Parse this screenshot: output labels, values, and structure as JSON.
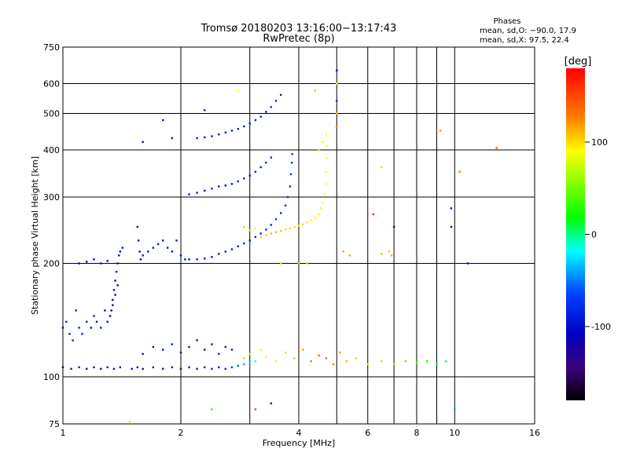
{
  "chart_data": {
    "type": "scatter",
    "title": "Tromsø 20180203 13:16:00−13:17:43",
    "subtitle": "RwPretec (8p)",
    "xlabel": "Frequency [MHz]",
    "ylabel": "Stationary phase Virtual Height [km]",
    "x_scale": "log",
    "y_scale": "log",
    "xlim": [
      1,
      16
    ],
    "ylim": [
      75,
      750
    ],
    "x_ticks": [
      1,
      2,
      4,
      6,
      8,
      10,
      16
    ],
    "x_tick_labels": [
      "1",
      "2",
      "4",
      "6",
      "8",
      "10",
      "16"
    ],
    "x_grid": [
      1,
      2,
      3,
      4,
      5,
      6,
      7,
      8,
      9,
      10,
      16
    ],
    "y_ticks": [
      75,
      100,
      200,
      300,
      400,
      500,
      600,
      750
    ],
    "y_tick_labels": [
      "75",
      "100",
      "200",
      "300",
      "400",
      "500",
      "600",
      "750"
    ],
    "grid": true,
    "legend": {
      "title": "Phases",
      "lines": [
        "mean, sd,O: −90.0, 17.9",
        "mean, sd,X:  97.5, 22.4"
      ],
      "placement": "top-right"
    },
    "colorbar": {
      "label": "[deg]",
      "range": [
        -180,
        180
      ],
      "ticks": [
        100,
        0,
        -100
      ],
      "tick_labels": [
        "100",
        "0",
        "-100"
      ],
      "colors": [
        "#ff0000",
        "#ff7f00",
        "#ffff00",
        "#00ff00",
        "#00ffff",
        "#0040ff",
        "#0000c0",
        "#3a007a",
        "#000000"
      ]
    },
    "series": [
      {
        "points": [
          [
            1.0,
            106,
            -95
          ],
          [
            1.05,
            105,
            -98
          ],
          [
            1.1,
            106,
            -92
          ],
          [
            1.15,
            105,
            -96
          ],
          [
            1.2,
            106,
            -94
          ],
          [
            1.25,
            105,
            -99
          ],
          [
            1.3,
            106,
            -93
          ],
          [
            1.35,
            105,
            -97
          ],
          [
            1.4,
            106,
            -95
          ],
          [
            1.5,
            105,
            -92
          ],
          [
            1.55,
            106,
            -96
          ],
          [
            1.6,
            105,
            -94
          ],
          [
            1.7,
            106,
            -91
          ],
          [
            1.8,
            105,
            -95
          ],
          [
            1.9,
            106,
            -93
          ],
          [
            2.0,
            105,
            -97
          ],
          [
            2.1,
            106,
            -92
          ],
          [
            2.2,
            105,
            -90
          ],
          [
            2.3,
            106,
            -88
          ],
          [
            2.4,
            105,
            -86
          ],
          [
            2.5,
            106,
            -84
          ],
          [
            2.6,
            105,
            -80
          ],
          [
            2.7,
            106,
            -75
          ],
          [
            2.8,
            107,
            -60
          ],
          [
            2.9,
            108,
            -40
          ],
          [
            3.0,
            109,
            -30
          ],
          [
            3.1,
            110,
            -20
          ],
          [
            1.0,
            135,
            -85
          ],
          [
            1.02,
            140,
            -88
          ],
          [
            1.04,
            130,
            -90
          ],
          [
            1.06,
            125,
            -87
          ],
          [
            1.08,
            150,
            -92
          ],
          [
            1.1,
            135,
            -90
          ],
          [
            1.12,
            130,
            -89
          ],
          [
            1.15,
            140,
            -93
          ],
          [
            1.18,
            135,
            -94
          ],
          [
            1.2,
            145,
            -92
          ],
          [
            1.22,
            140,
            -95
          ],
          [
            1.25,
            135,
            -96
          ],
          [
            1.28,
            150,
            -100
          ],
          [
            1.3,
            140,
            -98
          ],
          [
            1.32,
            145,
            -102
          ],
          [
            1.33,
            150,
            -110
          ],
          [
            1.34,
            160,
            -112
          ],
          [
            1.35,
            170,
            -110
          ],
          [
            1.36,
            180,
            -108
          ],
          [
            1.37,
            190,
            -105
          ],
          [
            1.38,
            200,
            -103
          ],
          [
            1.39,
            210,
            -100
          ],
          [
            1.4,
            215,
            -100
          ],
          [
            1.42,
            220,
            -98
          ],
          [
            1.38,
            175,
            -106
          ],
          [
            1.36,
            165,
            -111
          ],
          [
            1.34,
            155,
            -113
          ],
          [
            1.1,
            200,
            -100
          ],
          [
            1.15,
            202,
            -98
          ],
          [
            1.2,
            205,
            -99
          ],
          [
            1.25,
            200,
            -97
          ],
          [
            1.3,
            203,
            -98
          ],
          [
            1.55,
            250,
            -96
          ],
          [
            1.56,
            230,
            -94
          ],
          [
            1.57,
            215,
            -95
          ],
          [
            1.58,
            205,
            -97
          ],
          [
            1.6,
            210,
            -95
          ],
          [
            1.65,
            215,
            -93
          ],
          [
            1.7,
            220,
            -94
          ],
          [
            1.75,
            225,
            -95
          ],
          [
            1.8,
            230,
            -96
          ],
          [
            1.85,
            220,
            -94
          ],
          [
            1.9,
            215,
            -93
          ],
          [
            1.95,
            230,
            -92
          ],
          [
            2.0,
            210,
            -95
          ],
          [
            2.05,
            205,
            -96
          ],
          [
            2.1,
            205,
            -95
          ],
          [
            2.2,
            205,
            -94
          ],
          [
            2.3,
            206,
            -93
          ],
          [
            2.4,
            208,
            -92
          ],
          [
            2.5,
            212,
            -91
          ],
          [
            2.6,
            215,
            -90
          ],
          [
            2.7,
            218,
            -89
          ],
          [
            2.8,
            222,
            -88
          ],
          [
            2.9,
            226,
            -88
          ],
          [
            3.0,
            230,
            -87
          ],
          [
            3.1,
            235,
            -86
          ],
          [
            3.2,
            240,
            -85
          ],
          [
            3.3,
            246,
            -84
          ],
          [
            3.4,
            253,
            -83
          ],
          [
            3.5,
            262,
            -82
          ],
          [
            3.6,
            272,
            -80
          ],
          [
            3.7,
            285,
            -78
          ],
          [
            3.75,
            300,
            -76
          ],
          [
            3.8,
            320,
            -75
          ],
          [
            3.82,
            345,
            -74
          ],
          [
            3.84,
            370,
            -73
          ],
          [
            3.85,
            390,
            -72
          ],
          [
            2.1,
            305,
            -95
          ],
          [
            2.2,
            308,
            -94
          ],
          [
            2.3,
            312,
            -93
          ],
          [
            2.4,
            316,
            -92
          ],
          [
            2.5,
            320,
            -91
          ],
          [
            2.6,
            322,
            -90
          ],
          [
            2.7,
            325,
            -90
          ],
          [
            2.8,
            330,
            -89
          ],
          [
            2.9,
            336,
            -88
          ],
          [
            3.0,
            342,
            -87
          ],
          [
            3.1,
            350,
            -86
          ],
          [
            3.2,
            360,
            -86
          ],
          [
            3.3,
            370,
            -85
          ],
          [
            3.4,
            382,
            -84
          ],
          [
            2.2,
            430,
            -94
          ],
          [
            2.3,
            432,
            -93
          ],
          [
            2.4,
            435,
            -92
          ],
          [
            2.5,
            440,
            -91
          ],
          [
            2.6,
            445,
            -90
          ],
          [
            2.7,
            450,
            -90
          ],
          [
            2.8,
            455,
            -89
          ],
          [
            2.9,
            462,
            -88
          ],
          [
            3.0,
            470,
            -87
          ],
          [
            3.1,
            480,
            -86
          ],
          [
            3.2,
            490,
            -86
          ],
          [
            3.3,
            505,
            -85
          ],
          [
            3.4,
            520,
            -84
          ],
          [
            3.5,
            540,
            -83
          ],
          [
            3.6,
            560,
            -82
          ],
          [
            1.8,
            480,
            -92
          ],
          [
            1.9,
            430,
            -95
          ],
          [
            2.3,
            510,
            -90
          ],
          [
            1.6,
            420,
            -93
          ],
          [
            3.2,
            235,
            100
          ],
          [
            3.3,
            238,
            105
          ],
          [
            3.4,
            240,
            110
          ],
          [
            3.5,
            242,
            108
          ],
          [
            3.6,
            244,
            106
          ],
          [
            3.7,
            246,
            104
          ],
          [
            3.8,
            248,
            102
          ],
          [
            3.9,
            250,
            100
          ],
          [
            4.0,
            252,
            98
          ],
          [
            4.1,
            254,
            96
          ],
          [
            4.2,
            257,
            95
          ],
          [
            4.3,
            260,
            94
          ],
          [
            4.4,
            264,
            94
          ],
          [
            4.5,
            270,
            93
          ],
          [
            4.55,
            280,
            93
          ],
          [
            4.6,
            290,
            92
          ],
          [
            4.65,
            305,
            92
          ],
          [
            4.7,
            325,
            91
          ],
          [
            4.7,
            350,
            91
          ],
          [
            4.72,
            380,
            90
          ],
          [
            4.72,
            410,
            90
          ],
          [
            4.7,
            440,
            90
          ],
          [
            4.6,
            420,
            95
          ],
          [
            4.5,
            400,
            105
          ],
          [
            2.9,
            250,
            60
          ],
          [
            3.0,
            245,
            75
          ],
          [
            3.1,
            248,
            80
          ],
          [
            3.6,
            200,
            102
          ],
          [
            4.0,
            200,
            110
          ],
          [
            4.2,
            200,
            105
          ],
          [
            5.2,
            215,
            120
          ],
          [
            5.4,
            210,
            115
          ],
          [
            6.5,
            212,
            110
          ],
          [
            6.8,
            215,
            108
          ],
          [
            6.9,
            210,
            112
          ],
          [
            2.9,
            112,
            60
          ],
          [
            3.0,
            115,
            70
          ],
          [
            3.2,
            118,
            80
          ],
          [
            3.3,
            113,
            90
          ],
          [
            3.5,
            110,
            95
          ],
          [
            3.7,
            116,
            100
          ],
          [
            3.9,
            112,
            110
          ],
          [
            4.1,
            118,
            120
          ],
          [
            4.3,
            110,
            130
          ],
          [
            4.5,
            114,
            140
          ],
          [
            4.7,
            112,
            135
          ],
          [
            4.9,
            108,
            125
          ],
          [
            5.1,
            116,
            120
          ],
          [
            5.3,
            110,
            110
          ],
          [
            5.6,
            112,
            100
          ],
          [
            6.0,
            108,
            80
          ],
          [
            6.5,
            110,
            60
          ],
          [
            7.0,
            108,
            50
          ],
          [
            7.5,
            110,
            40
          ],
          [
            8.0,
            109,
            30
          ],
          [
            8.5,
            110,
            20
          ],
          [
            9.0,
            108,
            10
          ],
          [
            9.5,
            110,
            0
          ],
          [
            1.6,
            115,
            -93
          ],
          [
            1.7,
            120,
            -94
          ],
          [
            1.8,
            118,
            -92
          ],
          [
            1.9,
            122,
            -93
          ],
          [
            2.0,
            116,
            -95
          ],
          [
            2.1,
            120,
            -94
          ],
          [
            2.2,
            125,
            -93
          ],
          [
            2.3,
            118,
            -92
          ],
          [
            2.4,
            122,
            -91
          ],
          [
            2.5,
            115,
            -90
          ],
          [
            2.6,
            120,
            -89
          ],
          [
            2.7,
            118,
            -88
          ],
          [
            5.0,
            650,
            -100
          ],
          [
            5.0,
            600,
            90
          ],
          [
            5.0,
            540,
            -80
          ],
          [
            5.0,
            500,
            105
          ],
          [
            5.0,
            460,
            130
          ],
          [
            6.5,
            360,
            100
          ],
          [
            6.2,
            270,
            170
          ],
          [
            7.0,
            250,
            -120
          ],
          [
            9.2,
            450,
            120
          ],
          [
            10.3,
            350,
            130
          ],
          [
            9.8,
            280,
            -130
          ],
          [
            9.8,
            250,
            -150
          ],
          [
            12.8,
            405,
            140
          ],
          [
            10.8,
            200,
            -120
          ],
          [
            4.4,
            575,
            110
          ],
          [
            2.8,
            575,
            90
          ],
          [
            2.4,
            82,
            30
          ],
          [
            3.1,
            82,
            150
          ],
          [
            3.4,
            85,
            -120
          ],
          [
            10.0,
            82,
            -40
          ],
          [
            1.48,
            76,
            100
          ]
        ]
      }
    ]
  }
}
